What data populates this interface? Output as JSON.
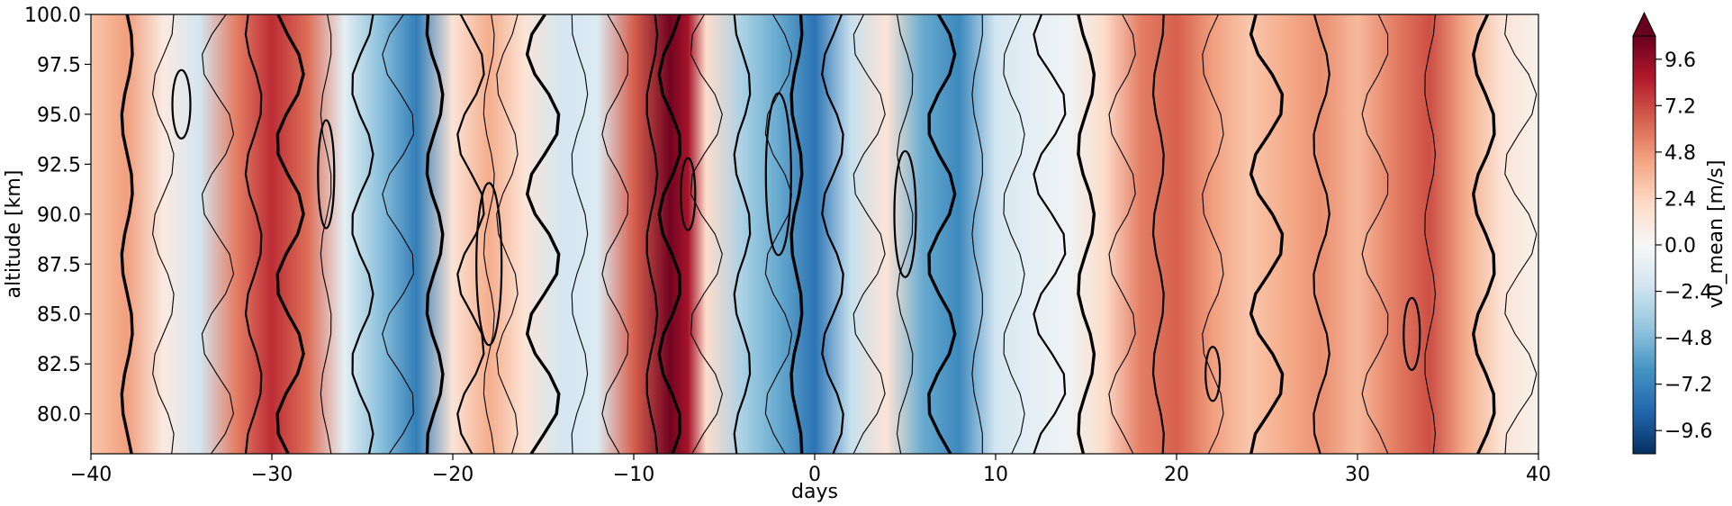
{
  "chart_data": {
    "type": "heatmap",
    "title": "",
    "xlabel": "days",
    "ylabel": "altitude [km]",
    "xlim": [
      -40,
      40
    ],
    "ylim": [
      78,
      100
    ],
    "x_ticks": [
      -40,
      -30,
      -20,
      -10,
      0,
      10,
      20,
      30,
      40
    ],
    "x_tick_labels": [
      "−40",
      "−30",
      "−20",
      "−10",
      "0",
      "10",
      "20",
      "30",
      "40"
    ],
    "y_ticks": [
      80.0,
      82.5,
      85.0,
      87.5,
      90.0,
      92.5,
      95.0,
      97.5,
      100.0
    ],
    "y_tick_labels": [
      "80.0",
      "82.5",
      "85.0",
      "87.5",
      "90.0",
      "92.5",
      "95.0",
      "97.5",
      "100.0"
    ],
    "colorbar": {
      "label": "v0_mean [m/s]",
      "range": [
        -10.8,
        10.8
      ],
      "extend": "max",
      "colormap": "RdBu_r",
      "ticks": [
        -9.6,
        -7.2,
        -4.8,
        -2.4,
        0.0,
        2.4,
        4.8,
        7.2,
        9.6
      ],
      "tick_labels": [
        "−9.6",
        "−7.2",
        "−4.8",
        "−2.4",
        "0.0",
        "2.4",
        "4.8",
        "7.2",
        "9.6"
      ],
      "colors": [
        "#053061",
        "#2166ac",
        "#4393c3",
        "#92c5de",
        "#d1e5f0",
        "#f7f7f7",
        "#fddbc7",
        "#f4a582",
        "#d6604d",
        "#b2182b",
        "#67001f"
      ]
    },
    "field_profile": {
      "days": [
        -40,
        -38,
        -36,
        -34,
        -32,
        -30,
        -28,
        -26,
        -24,
        -22,
        -20,
        -18,
        -16,
        -14,
        -12,
        -10,
        -8,
        -7,
        -6,
        -4,
        -2,
        0,
        2,
        4,
        6,
        8,
        10,
        12,
        14,
        16,
        18,
        20,
        22,
        24,
        26,
        28,
        30,
        32,
        34,
        36,
        38,
        40
      ],
      "v0_mean": [
        3.0,
        4.5,
        1.0,
        -2.0,
        5.5,
        8.0,
        6.0,
        -1.0,
        -4.5,
        -7.5,
        1.5,
        4.0,
        1.5,
        -2.0,
        -1.5,
        6.5,
        10.5,
        9.0,
        2.0,
        -3.5,
        -5.5,
        -8.0,
        -2.5,
        1.5,
        -5.5,
        -7.0,
        -2.0,
        -1.0,
        -0.5,
        2.0,
        5.5,
        6.5,
        4.5,
        3.0,
        4.0,
        5.0,
        3.5,
        5.5,
        7.0,
        4.0,
        1.5,
        0.5
      ]
    }
  }
}
